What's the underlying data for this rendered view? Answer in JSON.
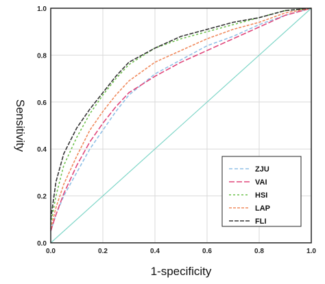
{
  "chart_data": {
    "type": "line",
    "title": "",
    "xlabel": "1-specificity",
    "ylabel": "Sensitivity",
    "xlim": [
      0,
      1
    ],
    "ylim": [
      0,
      1
    ],
    "x_ticks": [
      "0.0",
      "0.2",
      "0.4",
      "0.6",
      "0.8",
      "1.0"
    ],
    "y_ticks": [
      "0.0",
      "0.2",
      "0.4",
      "0.6",
      "0.8",
      "1.0"
    ],
    "grid": true,
    "legend_position": "bottom-right",
    "reference_line": {
      "x": [
        0,
        1
      ],
      "y": [
        0,
        1
      ],
      "color": "#7fd6c8"
    },
    "series": [
      {
        "name": "ZJU",
        "color": "#8fbfe6",
        "dash": "5,3",
        "x": [
          0,
          0.02,
          0.05,
          0.1,
          0.15,
          0.2,
          0.25,
          0.3,
          0.4,
          0.5,
          0.6,
          0.7,
          0.8,
          0.9,
          1.0
        ],
        "y": [
          0.05,
          0.12,
          0.2,
          0.3,
          0.4,
          0.48,
          0.56,
          0.63,
          0.72,
          0.78,
          0.84,
          0.88,
          0.93,
          0.97,
          1.0
        ]
      },
      {
        "name": "VAI",
        "color": "#e0457a",
        "dash": "8,3",
        "x": [
          0,
          0.02,
          0.05,
          0.1,
          0.15,
          0.2,
          0.25,
          0.3,
          0.4,
          0.5,
          0.6,
          0.7,
          0.8,
          0.9,
          1.0
        ],
        "y": [
          0.05,
          0.12,
          0.21,
          0.33,
          0.43,
          0.51,
          0.58,
          0.64,
          0.71,
          0.77,
          0.82,
          0.87,
          0.92,
          0.97,
          1.0
        ]
      },
      {
        "name": "HSI",
        "color": "#6cc04a",
        "dash": "3,3",
        "x": [
          0,
          0.02,
          0.05,
          0.1,
          0.15,
          0.2,
          0.25,
          0.3,
          0.4,
          0.5,
          0.6,
          0.7,
          0.8,
          0.9,
          1.0
        ],
        "y": [
          0.08,
          0.2,
          0.33,
          0.45,
          0.55,
          0.63,
          0.7,
          0.76,
          0.83,
          0.87,
          0.9,
          0.93,
          0.96,
          0.99,
          1.0
        ]
      },
      {
        "name": "LAP",
        "color": "#f08a5d",
        "dash": "4,2",
        "x": [
          0,
          0.02,
          0.05,
          0.1,
          0.15,
          0.2,
          0.25,
          0.3,
          0.4,
          0.5,
          0.6,
          0.7,
          0.8,
          0.9,
          1.0
        ],
        "y": [
          0.06,
          0.15,
          0.25,
          0.37,
          0.48,
          0.56,
          0.63,
          0.69,
          0.77,
          0.82,
          0.87,
          0.91,
          0.94,
          0.98,
          1.0
        ]
      },
      {
        "name": "FLI",
        "color": "#333333",
        "dash": "6,2",
        "x": [
          0,
          0.02,
          0.05,
          0.1,
          0.15,
          0.2,
          0.25,
          0.3,
          0.4,
          0.5,
          0.6,
          0.7,
          0.8,
          0.9,
          1.0
        ],
        "y": [
          0.1,
          0.26,
          0.38,
          0.49,
          0.57,
          0.64,
          0.71,
          0.77,
          0.83,
          0.88,
          0.91,
          0.94,
          0.96,
          0.99,
          1.0
        ]
      }
    ]
  }
}
